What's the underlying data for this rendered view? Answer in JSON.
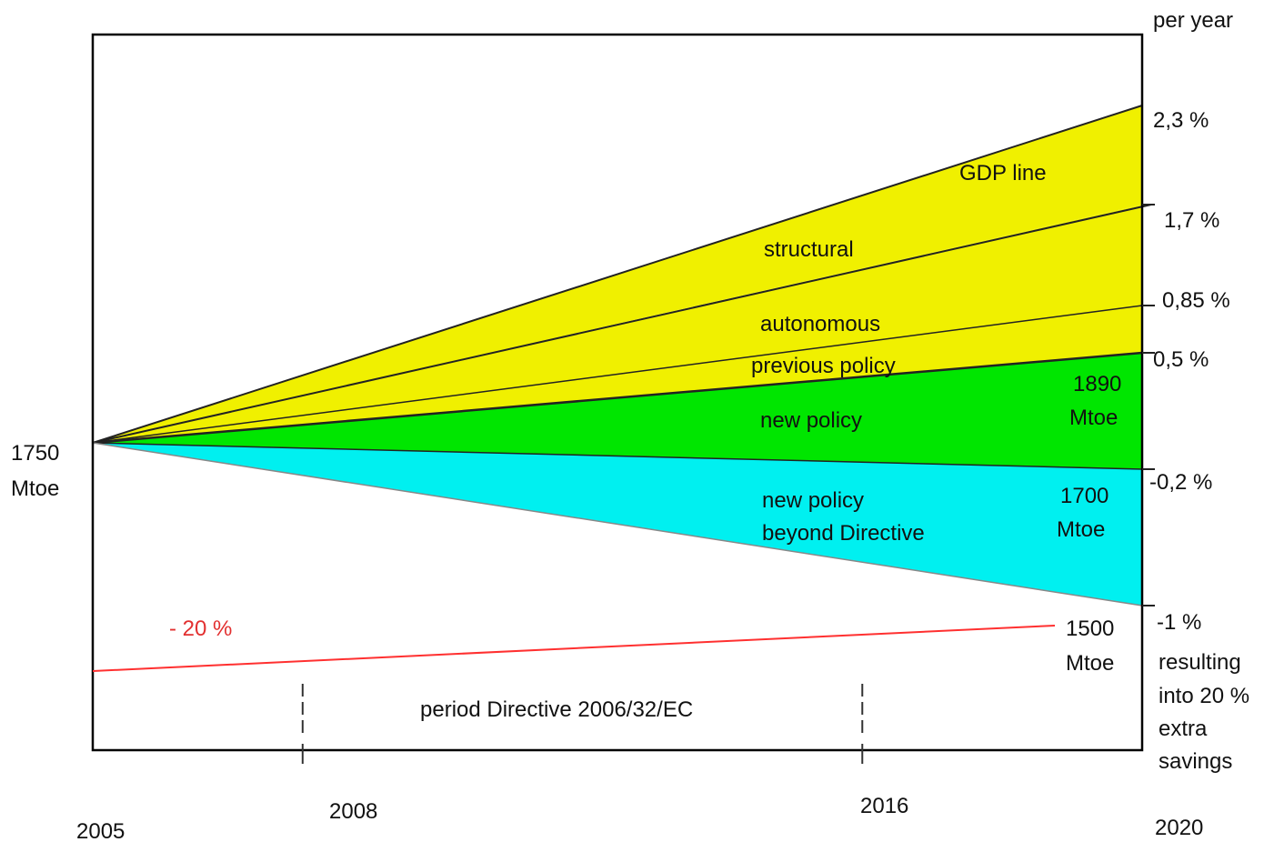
{
  "chart_data": {
    "type": "area",
    "title": "",
    "x_ticks": [
      {
        "year": 2005,
        "label": "2005"
      },
      {
        "year": 2008,
        "label": "2008"
      },
      {
        "year": 2016,
        "label": "2016"
      },
      {
        "year": 2020,
        "label": "2020"
      }
    ],
    "x_range": [
      2005,
      2020
    ],
    "right_axis_title": "per year",
    "start": {
      "year": 2005,
      "value_label": "1750",
      "unit_label": "Mtoe"
    },
    "lines": [
      {
        "id": "gdp",
        "rate_label": "2,3 %",
        "rate": 2.3
      },
      {
        "id": "structural",
        "rate_label": "1,7 %",
        "rate": 1.7
      },
      {
        "id": "autonomous",
        "rate_label": "0,85 %",
        "rate": 0.85
      },
      {
        "id": "previous",
        "rate_label": "0,5 %",
        "rate": 0.5
      },
      {
        "id": "new",
        "rate_label": "-0,2 %",
        "rate": -0.2
      },
      {
        "id": "beyond",
        "rate_label": "-1 %",
        "rate": -1.0
      }
    ],
    "bands": [
      {
        "label": "GDP line",
        "color": "#f0f000"
      },
      {
        "label": "structural",
        "color": "#f0f000"
      },
      {
        "label": "autonomous",
        "color": "#f0f000"
      },
      {
        "label": "previous policy",
        "color": "#f0f000"
      },
      {
        "label": "new policy",
        "color": "#00e600"
      },
      {
        "label": "new policy\nbeyond Directive",
        "color": "#00f0f0"
      }
    ],
    "end_values": [
      {
        "value": "1890",
        "unit": "Mtoe"
      },
      {
        "value": "1700",
        "unit": "Mtoe"
      },
      {
        "value": "1500",
        "unit": "Mtoe"
      }
    ],
    "target_line": {
      "label": "- 20 %",
      "color": "#ff3030"
    },
    "period": {
      "label": "period Directive 2006/32/EC",
      "from": 2008,
      "to": 2016
    },
    "extra_note": [
      "resulting",
      "into 20 %",
      "extra",
      "savings"
    ]
  }
}
